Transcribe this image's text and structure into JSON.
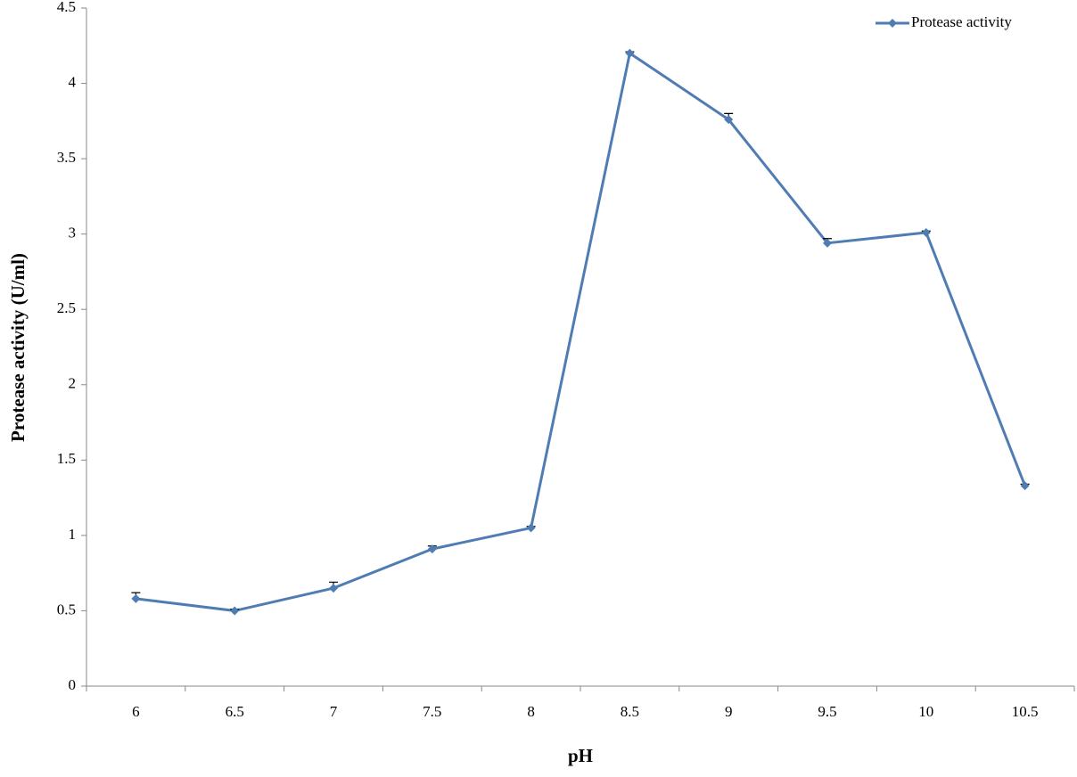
{
  "chart_data": {
    "type": "line",
    "x_label": "pH",
    "y_label": "Protease activity (U/ml)",
    "categories": [
      "6",
      "6.5",
      "7",
      "7.5",
      "8",
      "8.5",
      "9",
      "9.5",
      "10",
      "10.5"
    ],
    "series": [
      {
        "name": "Protease activity",
        "color": "#4f7db3",
        "values": [
          0.58,
          0.5,
          0.65,
          0.91,
          1.05,
          4.2,
          3.76,
          2.94,
          3.01,
          1.33
        ],
        "errors": [
          0.04,
          0.01,
          0.04,
          0.02,
          0.01,
          0.01,
          0.04,
          0.03,
          0.01,
          0.01
        ]
      }
    ],
    "ylim": [
      0,
      4.5
    ],
    "yticks": [
      0,
      0.5,
      1,
      1.5,
      2,
      2.5,
      3,
      3.5,
      4,
      4.5
    ],
    "grid": false,
    "legend": "top-right"
  }
}
